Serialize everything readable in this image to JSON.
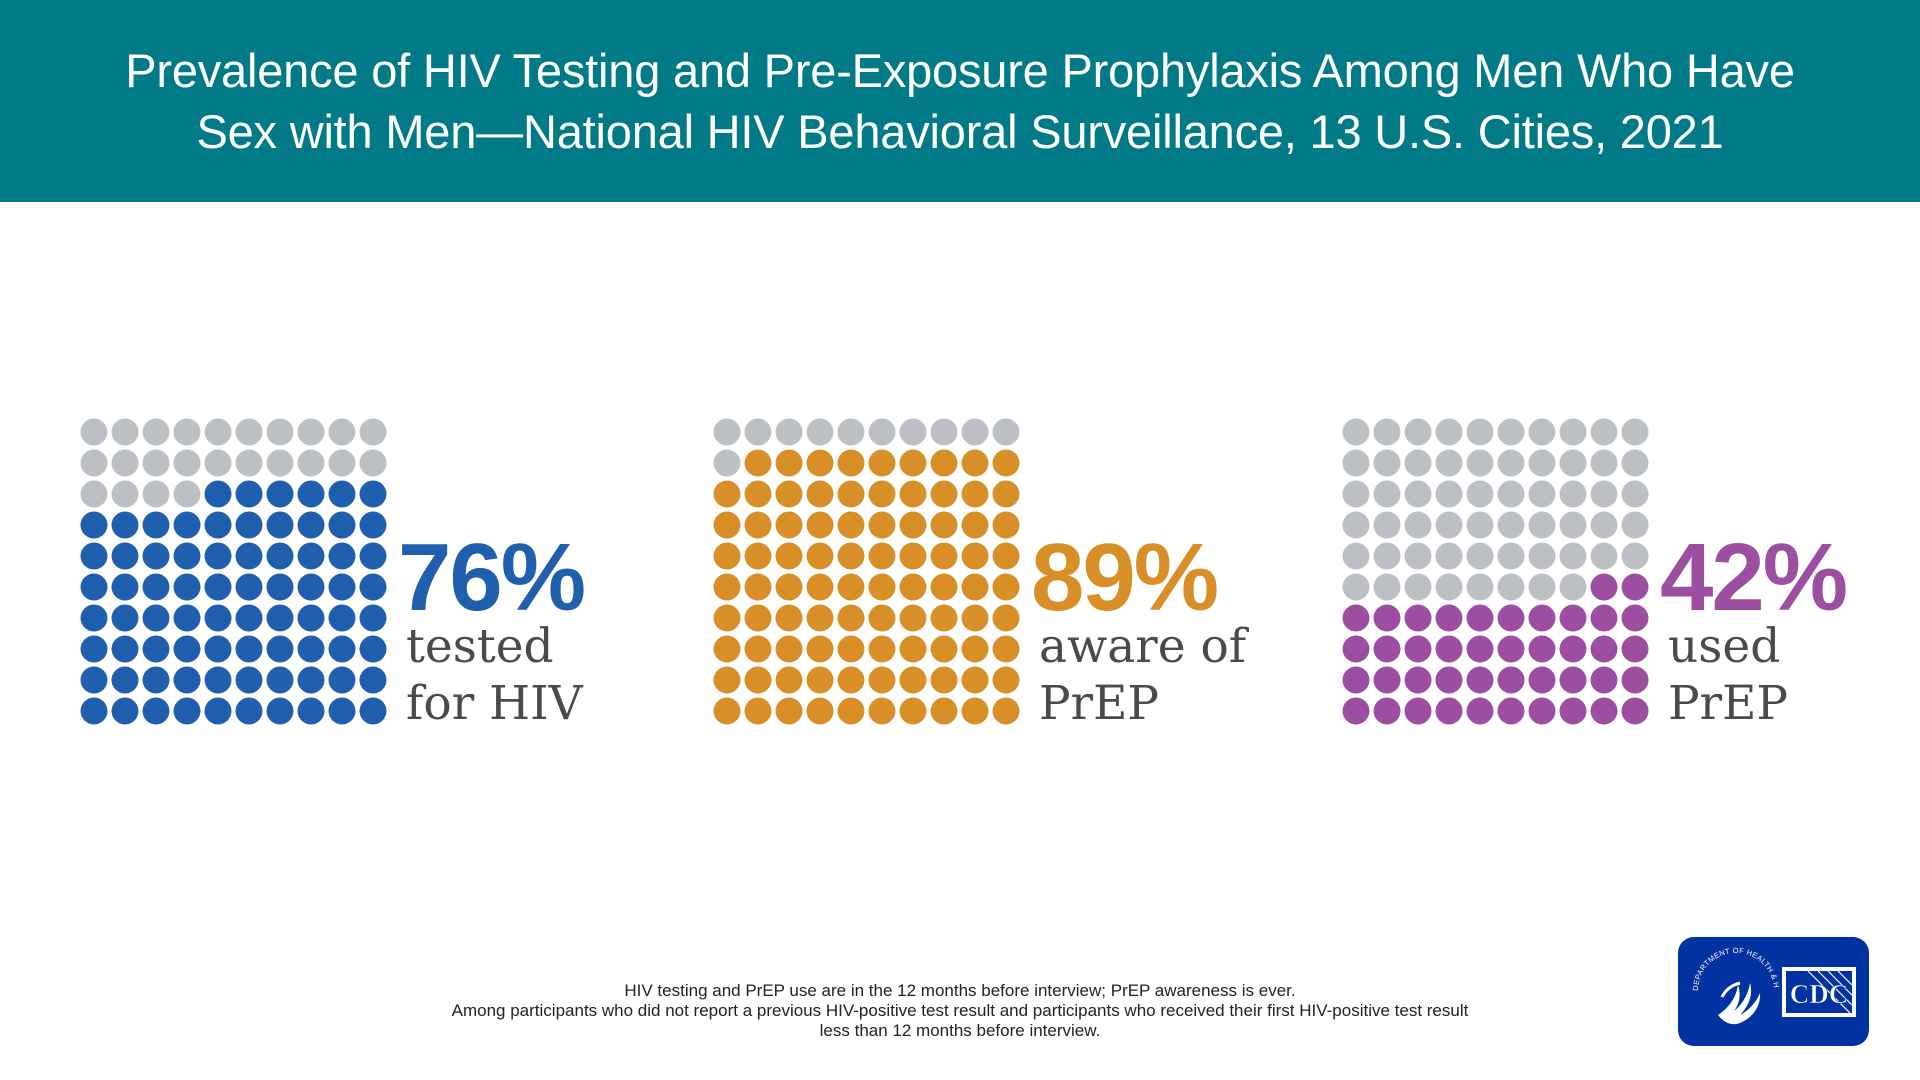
{
  "header": {
    "title_line1": "Prevalence of HIV Testing and Pre-Exposure Prophylaxis Among Men Who Have",
    "title_line2": "Sex with Men—National HIV Behavioral Surveillance, 13 U.S. Cities, 2021"
  },
  "chart_data": [
    {
      "type": "waffle",
      "grid": "10x10",
      "value": 76,
      "value_label": "76%",
      "caption_line1": "tested",
      "caption_line2": "for HIV",
      "color": "#1f5fad",
      "empty_color": "#bcc0c4"
    },
    {
      "type": "waffle",
      "grid": "10x10",
      "value": 89,
      "value_label": "89%",
      "caption_line1": "aware of",
      "caption_line2": "PrEP",
      "color": "#d98f27",
      "empty_color": "#bcc0c4"
    },
    {
      "type": "waffle",
      "grid": "10x10",
      "value": 42,
      "value_label": "42%",
      "caption_line1": "used",
      "caption_line2": "PrEP",
      "color": "#9c4fa0",
      "empty_color": "#bcc0c4"
    }
  ],
  "footnote": {
    "line1": "HIV testing and PrEP use are in the 12 months before interview; PrEP awareness is ever.",
    "line2": "Among participants who did not report a previous HIV-positive test result and participants who received their first HIV-positive test result",
    "line3": "less than 12 months before interview."
  },
  "logo": {
    "seal_text": "DEPARTMENT OF HEALTH & HUMAN SERVICES USA",
    "cdc_text": "CDC",
    "icon": "hhs-eagle-icon",
    "color": "#0033a1"
  }
}
